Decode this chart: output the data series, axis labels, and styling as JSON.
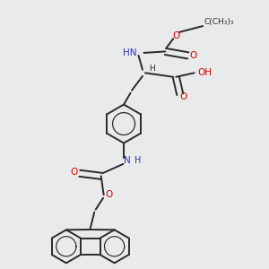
{
  "background_color": "#e8eaeb",
  "bond_color": "#2a2a2a",
  "oxygen_color": "#dd0000",
  "nitrogen_color": "#3333bb",
  "line_width": 1.4,
  "figsize": [
    3.0,
    3.0
  ],
  "dpi": 100,
  "xlim": [
    0,
    10
  ],
  "ylim": [
    0,
    10
  ]
}
